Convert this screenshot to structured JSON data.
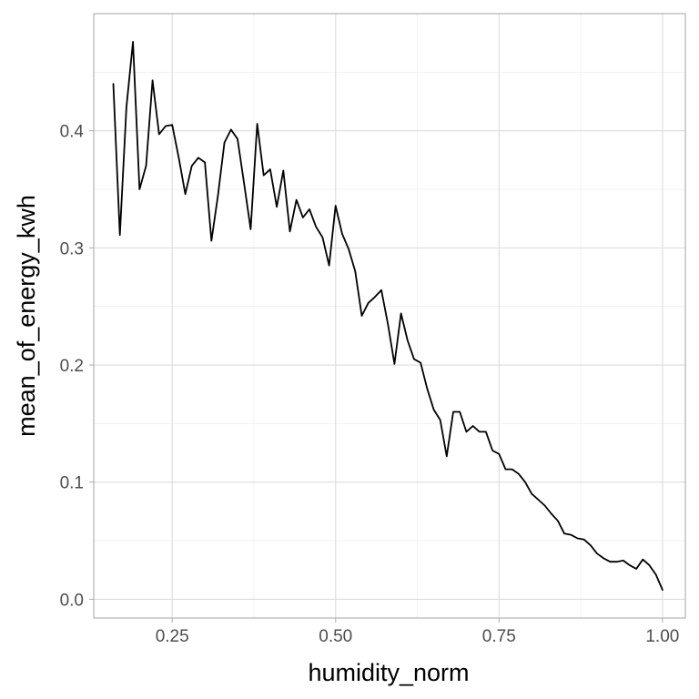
{
  "chart_data": {
    "type": "line",
    "title": "",
    "xlabel": "humidity_norm",
    "ylabel": "mean_of_energy_kwh",
    "xlim": [
      0.13,
      1.035
    ],
    "ylim": [
      -0.016,
      0.5
    ],
    "x_ticks": [
      0.25,
      0.5,
      0.75,
      1.0
    ],
    "x_tick_labels": [
      "0.25",
      "0.50",
      "0.75",
      "1.00"
    ],
    "y_ticks": [
      0.0,
      0.1,
      0.2,
      0.3,
      0.4
    ],
    "y_tick_labels": [
      "0.0",
      "0.1",
      "0.2",
      "0.3",
      "0.4"
    ],
    "grid": true,
    "theme": "light",
    "line_color": "#000000",
    "x": [
      0.16,
      0.17,
      0.18,
      0.19,
      0.2,
      0.21,
      0.22,
      0.23,
      0.24,
      0.25,
      0.26,
      0.27,
      0.28,
      0.29,
      0.3,
      0.31,
      0.32,
      0.33,
      0.34,
      0.35,
      0.36,
      0.37,
      0.38,
      0.39,
      0.4,
      0.41,
      0.42,
      0.43,
      0.44,
      0.45,
      0.46,
      0.47,
      0.48,
      0.49,
      0.5,
      0.51,
      0.52,
      0.53,
      0.54,
      0.55,
      0.56,
      0.57,
      0.58,
      0.59,
      0.6,
      0.61,
      0.62,
      0.63,
      0.64,
      0.65,
      0.66,
      0.67,
      0.68,
      0.69,
      0.7,
      0.71,
      0.72,
      0.73,
      0.74,
      0.75,
      0.76,
      0.77,
      0.78,
      0.79,
      0.8,
      0.81,
      0.82,
      0.83,
      0.84,
      0.85,
      0.86,
      0.87,
      0.88,
      0.89,
      0.9,
      0.91,
      0.92,
      0.93,
      0.94,
      0.95,
      0.96,
      0.97,
      0.98,
      0.99,
      1.0
    ],
    "series": [
      {
        "values": [
          0.44,
          0.311,
          0.42,
          0.476,
          0.35,
          0.37,
          0.443,
          0.397,
          0.404,
          0.405,
          0.377,
          0.346,
          0.37,
          0.377,
          0.373,
          0.306,
          0.345,
          0.39,
          0.401,
          0.393,
          0.355,
          0.316,
          0.406,
          0.362,
          0.367,
          0.335,
          0.366,
          0.314,
          0.341,
          0.326,
          0.333,
          0.318,
          0.309,
          0.285,
          0.336,
          0.312,
          0.299,
          0.28,
          0.242,
          0.253,
          0.258,
          0.264,
          0.235,
          0.201,
          0.244,
          0.221,
          0.205,
          0.202,
          0.18,
          0.162,
          0.153,
          0.122,
          0.16,
          0.16,
          0.143,
          0.148,
          0.143,
          0.143,
          0.127,
          0.124,
          0.111,
          0.111,
          0.107,
          0.1,
          0.09,
          0.085,
          0.08,
          0.073,
          0.067,
          0.056,
          0.055,
          0.052,
          0.051,
          0.046,
          0.039,
          0.035,
          0.032,
          0.032,
          0.033,
          0.029,
          0.026,
          0.034,
          0.029,
          0.021,
          0.008
        ]
      }
    ]
  }
}
